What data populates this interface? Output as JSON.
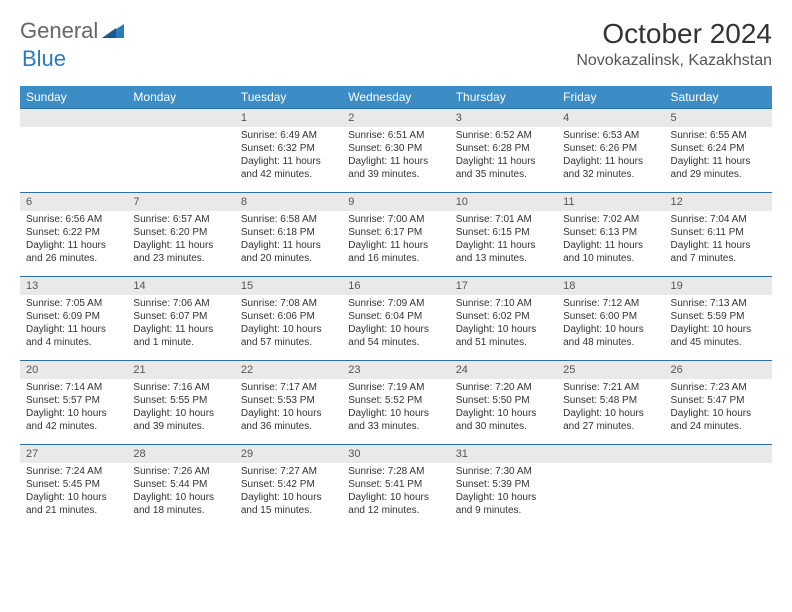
{
  "logo": {
    "general": "General",
    "blue": "Blue"
  },
  "title": "October 2024",
  "location": "Novokazalinsk, Kazakhstan",
  "dayHeaders": [
    "Sunday",
    "Monday",
    "Tuesday",
    "Wednesday",
    "Thursday",
    "Friday",
    "Saturday"
  ],
  "colors": {
    "headerBg": "#3c8dc5",
    "headerText": "#ffffff",
    "dayNumBg": "#e9e9e9",
    "rowBorder": "#2c6fa5",
    "logoBlue": "#2c7bb8"
  },
  "weeks": [
    [
      null,
      null,
      {
        "num": "1",
        "sunrise": "Sunrise: 6:49 AM",
        "sunset": "Sunset: 6:32 PM",
        "daylight": "Daylight: 11 hours and 42 minutes."
      },
      {
        "num": "2",
        "sunrise": "Sunrise: 6:51 AM",
        "sunset": "Sunset: 6:30 PM",
        "daylight": "Daylight: 11 hours and 39 minutes."
      },
      {
        "num": "3",
        "sunrise": "Sunrise: 6:52 AM",
        "sunset": "Sunset: 6:28 PM",
        "daylight": "Daylight: 11 hours and 35 minutes."
      },
      {
        "num": "4",
        "sunrise": "Sunrise: 6:53 AM",
        "sunset": "Sunset: 6:26 PM",
        "daylight": "Daylight: 11 hours and 32 minutes."
      },
      {
        "num": "5",
        "sunrise": "Sunrise: 6:55 AM",
        "sunset": "Sunset: 6:24 PM",
        "daylight": "Daylight: 11 hours and 29 minutes."
      }
    ],
    [
      {
        "num": "6",
        "sunrise": "Sunrise: 6:56 AM",
        "sunset": "Sunset: 6:22 PM",
        "daylight": "Daylight: 11 hours and 26 minutes."
      },
      {
        "num": "7",
        "sunrise": "Sunrise: 6:57 AM",
        "sunset": "Sunset: 6:20 PM",
        "daylight": "Daylight: 11 hours and 23 minutes."
      },
      {
        "num": "8",
        "sunrise": "Sunrise: 6:58 AM",
        "sunset": "Sunset: 6:18 PM",
        "daylight": "Daylight: 11 hours and 20 minutes."
      },
      {
        "num": "9",
        "sunrise": "Sunrise: 7:00 AM",
        "sunset": "Sunset: 6:17 PM",
        "daylight": "Daylight: 11 hours and 16 minutes."
      },
      {
        "num": "10",
        "sunrise": "Sunrise: 7:01 AM",
        "sunset": "Sunset: 6:15 PM",
        "daylight": "Daylight: 11 hours and 13 minutes."
      },
      {
        "num": "11",
        "sunrise": "Sunrise: 7:02 AM",
        "sunset": "Sunset: 6:13 PM",
        "daylight": "Daylight: 11 hours and 10 minutes."
      },
      {
        "num": "12",
        "sunrise": "Sunrise: 7:04 AM",
        "sunset": "Sunset: 6:11 PM",
        "daylight": "Daylight: 11 hours and 7 minutes."
      }
    ],
    [
      {
        "num": "13",
        "sunrise": "Sunrise: 7:05 AM",
        "sunset": "Sunset: 6:09 PM",
        "daylight": "Daylight: 11 hours and 4 minutes."
      },
      {
        "num": "14",
        "sunrise": "Sunrise: 7:06 AM",
        "sunset": "Sunset: 6:07 PM",
        "daylight": "Daylight: 11 hours and 1 minute."
      },
      {
        "num": "15",
        "sunrise": "Sunrise: 7:08 AM",
        "sunset": "Sunset: 6:06 PM",
        "daylight": "Daylight: 10 hours and 57 minutes."
      },
      {
        "num": "16",
        "sunrise": "Sunrise: 7:09 AM",
        "sunset": "Sunset: 6:04 PM",
        "daylight": "Daylight: 10 hours and 54 minutes."
      },
      {
        "num": "17",
        "sunrise": "Sunrise: 7:10 AM",
        "sunset": "Sunset: 6:02 PM",
        "daylight": "Daylight: 10 hours and 51 minutes."
      },
      {
        "num": "18",
        "sunrise": "Sunrise: 7:12 AM",
        "sunset": "Sunset: 6:00 PM",
        "daylight": "Daylight: 10 hours and 48 minutes."
      },
      {
        "num": "19",
        "sunrise": "Sunrise: 7:13 AM",
        "sunset": "Sunset: 5:59 PM",
        "daylight": "Daylight: 10 hours and 45 minutes."
      }
    ],
    [
      {
        "num": "20",
        "sunrise": "Sunrise: 7:14 AM",
        "sunset": "Sunset: 5:57 PM",
        "daylight": "Daylight: 10 hours and 42 minutes."
      },
      {
        "num": "21",
        "sunrise": "Sunrise: 7:16 AM",
        "sunset": "Sunset: 5:55 PM",
        "daylight": "Daylight: 10 hours and 39 minutes."
      },
      {
        "num": "22",
        "sunrise": "Sunrise: 7:17 AM",
        "sunset": "Sunset: 5:53 PM",
        "daylight": "Daylight: 10 hours and 36 minutes."
      },
      {
        "num": "23",
        "sunrise": "Sunrise: 7:19 AM",
        "sunset": "Sunset: 5:52 PM",
        "daylight": "Daylight: 10 hours and 33 minutes."
      },
      {
        "num": "24",
        "sunrise": "Sunrise: 7:20 AM",
        "sunset": "Sunset: 5:50 PM",
        "daylight": "Daylight: 10 hours and 30 minutes."
      },
      {
        "num": "25",
        "sunrise": "Sunrise: 7:21 AM",
        "sunset": "Sunset: 5:48 PM",
        "daylight": "Daylight: 10 hours and 27 minutes."
      },
      {
        "num": "26",
        "sunrise": "Sunrise: 7:23 AM",
        "sunset": "Sunset: 5:47 PM",
        "daylight": "Daylight: 10 hours and 24 minutes."
      }
    ],
    [
      {
        "num": "27",
        "sunrise": "Sunrise: 7:24 AM",
        "sunset": "Sunset: 5:45 PM",
        "daylight": "Daylight: 10 hours and 21 minutes."
      },
      {
        "num": "28",
        "sunrise": "Sunrise: 7:26 AM",
        "sunset": "Sunset: 5:44 PM",
        "daylight": "Daylight: 10 hours and 18 minutes."
      },
      {
        "num": "29",
        "sunrise": "Sunrise: 7:27 AM",
        "sunset": "Sunset: 5:42 PM",
        "daylight": "Daylight: 10 hours and 15 minutes."
      },
      {
        "num": "30",
        "sunrise": "Sunrise: 7:28 AM",
        "sunset": "Sunset: 5:41 PM",
        "daylight": "Daylight: 10 hours and 12 minutes."
      },
      {
        "num": "31",
        "sunrise": "Sunrise: 7:30 AM",
        "sunset": "Sunset: 5:39 PM",
        "daylight": "Daylight: 10 hours and 9 minutes."
      },
      null,
      null
    ]
  ]
}
